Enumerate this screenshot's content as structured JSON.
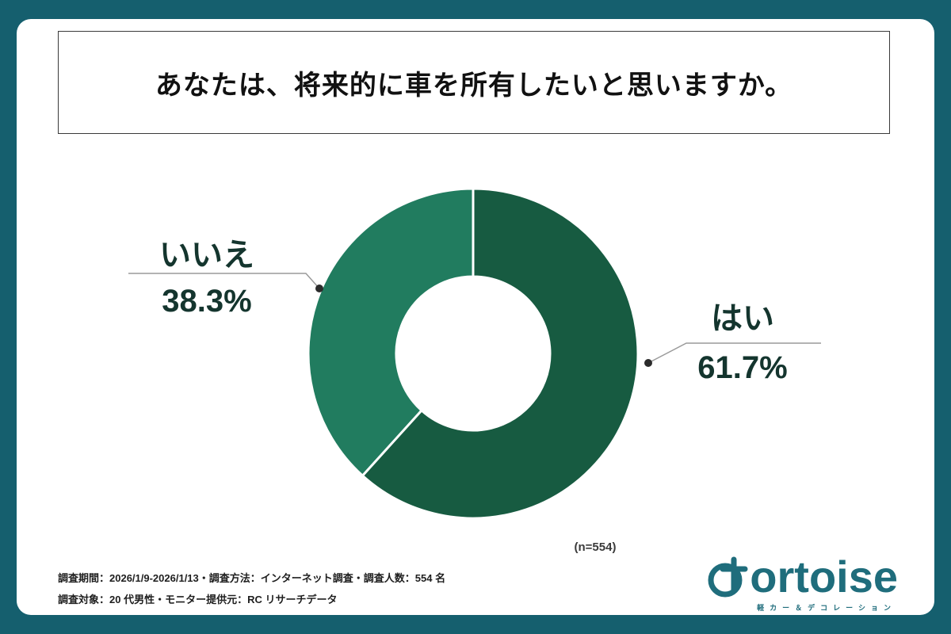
{
  "title": {
    "text": "あなたは、将来的に車を所有したいと思いますか。"
  },
  "chart_data": {
    "type": "pie",
    "donut": true,
    "title": "あなたは、将来的に車を所有したいと思いますか。",
    "categories": [
      "はい",
      "いいえ"
    ],
    "values": [
      61.7,
      38.3
    ],
    "unit": "%",
    "colors": [
      "#175B41",
      "#217C5F"
    ],
    "start_angle_deg": 0,
    "direction": "clockwise",
    "legend_position": "callouts",
    "sample_size_note": "(n=554)"
  },
  "callouts": {
    "yes": {
      "label": "はい",
      "value": "61.7%"
    },
    "no": {
      "label": "いいえ",
      "value": "38.3%"
    }
  },
  "n_note": "(n=554)",
  "footer": {
    "line1": "調査期間：2026/1/9-2026/1/13・調査方法：インターネット調査・調査人数：554 名",
    "line2": "調査対象：20 代男性・モニター提供元：RC リサーチデータ"
  },
  "logo": {
    "brand": "ortoise",
    "mark": "t-in-circle",
    "sub": "軽カー＆デコレーション"
  },
  "colors": {
    "frame": "#155F6E",
    "segment_yes": "#175B41",
    "segment_no": "#217C5F",
    "label_text": "#14352E",
    "logo": "#1F6D7C"
  }
}
